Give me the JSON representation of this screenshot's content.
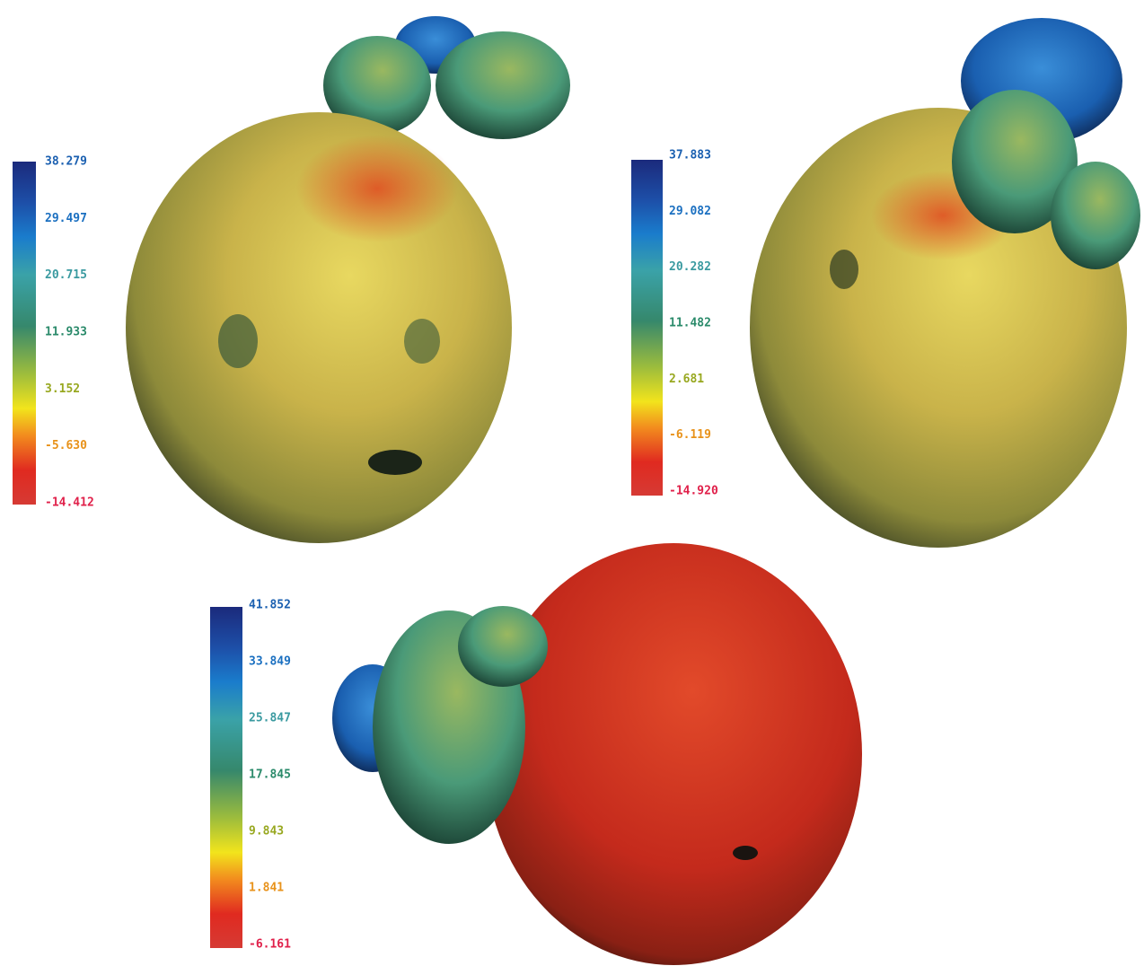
{
  "panels": [
    {
      "scale": [
        "38.279",
        "29.497",
        "20.715",
        "11.933",
        "3.152",
        "-5.630",
        "-14.412"
      ]
    },
    {
      "scale": [
        "37.883",
        "29.082",
        "20.282",
        "11.482",
        "2.681",
        "-6.119",
        "-14.920"
      ]
    },
    {
      "scale": [
        "41.852",
        "33.849",
        "25.847",
        "17.845",
        "9.843",
        "1.841",
        "-6.161"
      ]
    }
  ]
}
